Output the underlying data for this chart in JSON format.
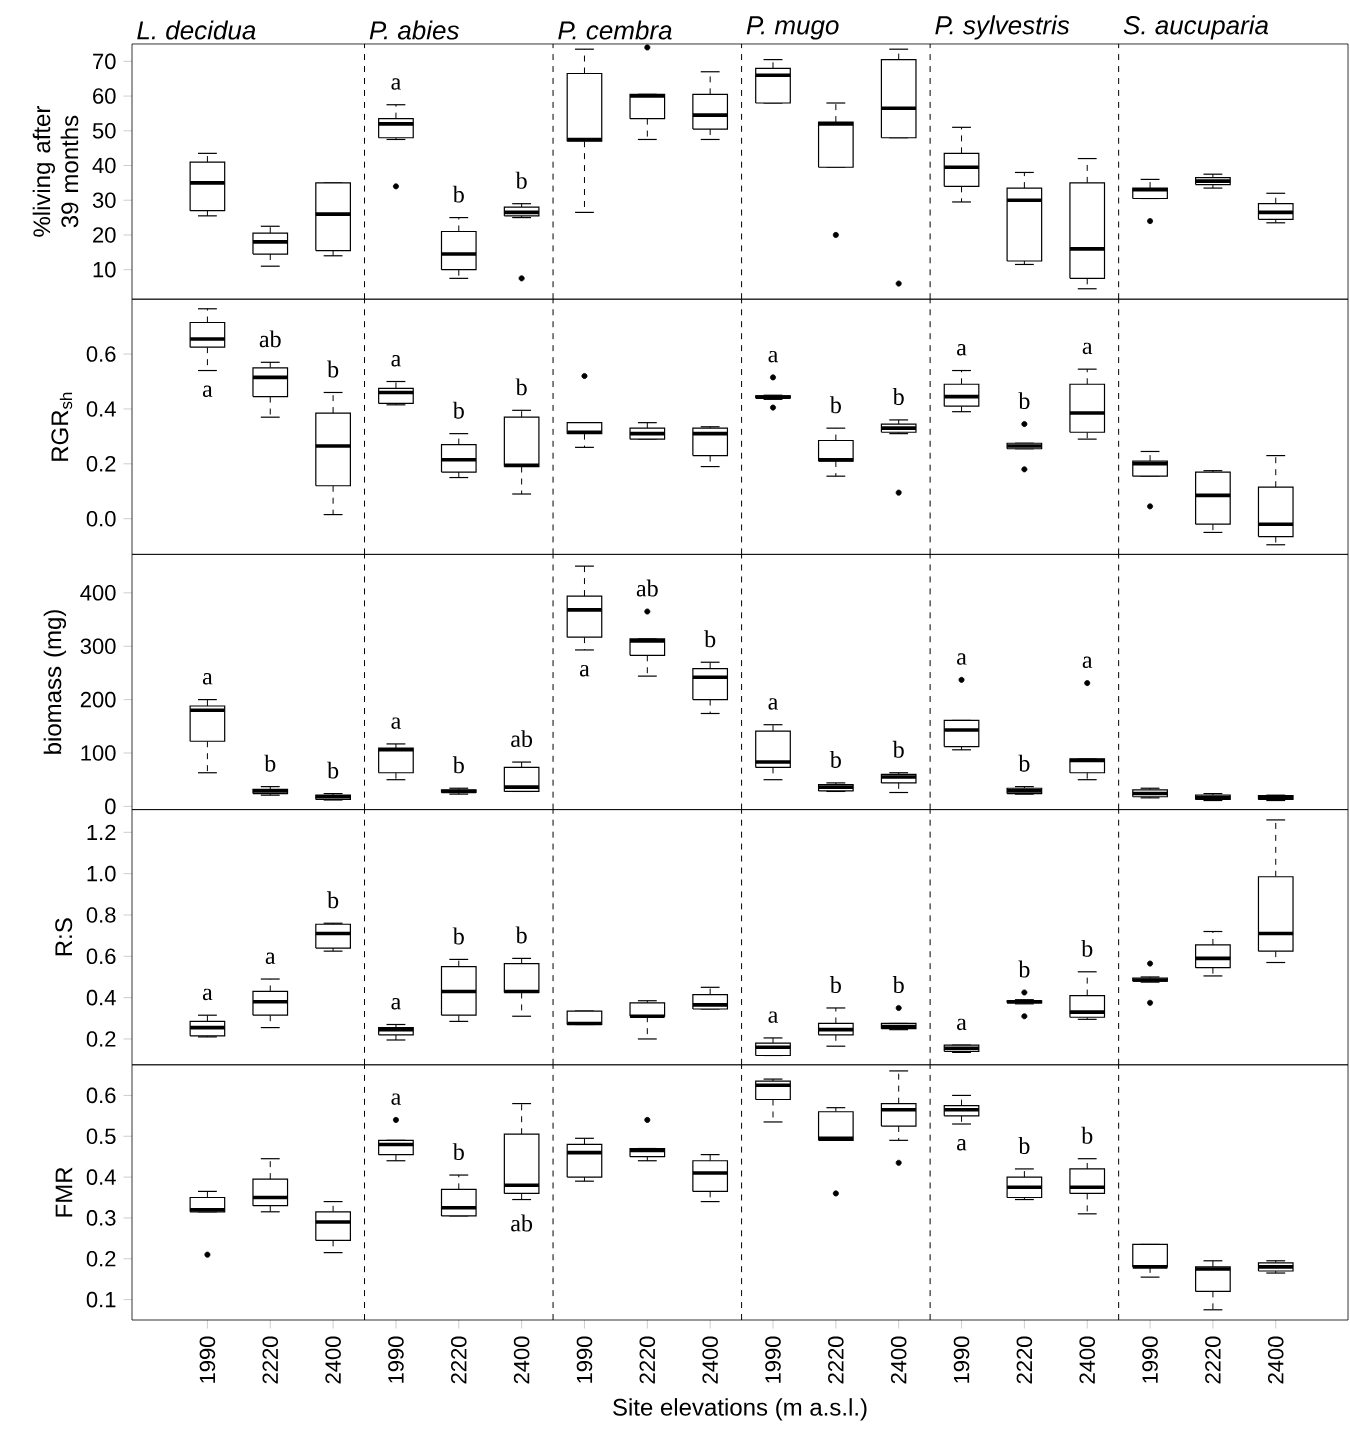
{
  "chart_data": [
    {
      "type": "box",
      "ylabel": "%living after 39 months",
      "tick_labels": "y",
      "annotations": [
        "L. decidua",
        "P. abies",
        "P. cembra",
        "P. mugo",
        "P. sylvestris",
        "S. aucuparia"
      ],
      "categories": [
        "1990",
        "2220",
        "2400",
        "1990",
        "2220",
        "2400",
        "1990",
        "2220",
        "2400",
        "1990",
        "2220",
        "2400",
        "1990",
        "2220",
        "2400",
        "1990",
        "2220",
        "2400"
      ],
      "ylim": [
        1.5,
        75
      ],
      "yticks": [
        10,
        20,
        30,
        40,
        50,
        60,
        70
      ],
      "boxes": [
        {
          "low": 25.5,
          "q1": 27,
          "median": 35,
          "q3": 41,
          "high": 43.5
        },
        {
          "low": 11,
          "q1": 14.5,
          "median": 18,
          "q3": 20.5,
          "high": 22.5
        },
        {
          "low": 14,
          "q1": 15.5,
          "median": 26,
          "q3": 35,
          "high": 35
        },
        {
          "low": 47.5,
          "q1": 48,
          "median": 52,
          "q3": 53.5,
          "high": 57.5,
          "outliers": [
            34
          ]
        },
        {
          "low": 7.5,
          "q1": 10,
          "median": 14.5,
          "q3": 21,
          "high": 25
        },
        {
          "low": 25,
          "q1": 25.5,
          "median": 26.5,
          "q3": 28,
          "high": 29,
          "outliers": [
            7.5
          ]
        },
        {
          "low": 26.5,
          "q1": 47,
          "median": 47.5,
          "q3": 66.5,
          "high": 73.5
        },
        {
          "low": 47.5,
          "q1": 53.5,
          "median": 60,
          "q3": 60.5,
          "high": 60.5,
          "outliers": [
            74
          ]
        },
        {
          "low": 47.5,
          "q1": 50.5,
          "median": 54.5,
          "q3": 60.5,
          "high": 67
        },
        {
          "low": 58,
          "q1": 58,
          "median": 66,
          "q3": 68,
          "high": 70.5
        },
        {
          "low": 39.5,
          "q1": 39.5,
          "median": 52,
          "q3": 52.5,
          "high": 58,
          "outliers": [
            20
          ]
        },
        {
          "low": 48,
          "q1": 48,
          "median": 56.5,
          "q3": 70.5,
          "high": 73.5,
          "outliers": [
            6
          ]
        },
        {
          "low": 29.5,
          "q1": 34,
          "median": 39.5,
          "q3": 43.5,
          "high": 51
        },
        {
          "low": 11.5,
          "q1": 12.5,
          "median": 30,
          "q3": 33.5,
          "high": 38
        },
        {
          "low": 4.5,
          "q1": 7.5,
          "median": 16,
          "q3": 35,
          "high": 42
        },
        {
          "low": 30.5,
          "q1": 30.5,
          "median": 33,
          "q3": 33.5,
          "high": 36,
          "outliers": [
            24
          ]
        },
        {
          "low": 33.5,
          "q1": 34.5,
          "median": 35.5,
          "q3": 36.5,
          "high": 37.5
        },
        {
          "low": 23.5,
          "q1": 24.5,
          "median": 26.5,
          "q3": 29,
          "high": 32
        }
      ],
      "value_labels": [
        null,
        null,
        null,
        "a",
        "b",
        "b",
        null,
        null,
        null,
        null,
        null,
        null,
        null,
        null,
        null,
        null,
        null,
        null
      ]
    },
    {
      "type": "box",
      "ylabel": "RGR$_{sh}$",
      "tick_labels": "y",
      "categories": [
        "1990",
        "2220",
        "2400",
        "1990",
        "2220",
        "2400",
        "1990",
        "2220",
        "2400",
        "1990",
        "2220",
        "2400",
        "1990",
        "2220",
        "2400",
        "1990",
        "2220",
        "2400"
      ],
      "ylim": [
        -0.13,
        0.8
      ],
      "yticks": [
        {
          "value": 0,
          "label": "0.0"
        },
        0.2,
        0.4,
        0.6
      ],
      "boxes": [
        {
          "low": 0.54,
          "q1": 0.625,
          "median": 0.655,
          "q3": 0.715,
          "high": 0.765
        },
        {
          "low": 0.37,
          "q1": 0.445,
          "median": 0.515,
          "q3": 0.55,
          "high": 0.57
        },
        {
          "low": 0.015,
          "q1": 0.12,
          "median": 0.265,
          "q3": 0.385,
          "high": 0.46
        },
        {
          "low": 0.415,
          "q1": 0.42,
          "median": 0.46,
          "q3": 0.475,
          "high": 0.5
        },
        {
          "low": 0.15,
          "q1": 0.17,
          "median": 0.215,
          "q3": 0.27,
          "high": 0.31
        },
        {
          "low": 0.09,
          "q1": 0.19,
          "median": 0.195,
          "q3": 0.37,
          "high": 0.395
        },
        {
          "low": 0.26,
          "q1": 0.31,
          "median": 0.315,
          "q3": 0.35,
          "high": 0.35,
          "outliers": [
            0.52
          ]
        },
        {
          "low": 0.29,
          "q1": 0.29,
          "median": 0.31,
          "q3": 0.33,
          "high": 0.35
        },
        {
          "low": 0.19,
          "q1": 0.23,
          "median": 0.31,
          "q3": 0.33,
          "high": 0.335
        },
        {
          "low": 0.435,
          "q1": 0.44,
          "median": 0.443,
          "q3": 0.448,
          "high": 0.45,
          "outliers": [
            0.515,
            0.405
          ]
        },
        {
          "low": 0.155,
          "q1": 0.21,
          "median": 0.215,
          "q3": 0.285,
          "high": 0.33
        },
        {
          "low": 0.31,
          "q1": 0.315,
          "median": 0.33,
          "q3": 0.345,
          "high": 0.36,
          "outliers": [
            0.095
          ]
        },
        {
          "low": 0.39,
          "q1": 0.41,
          "median": 0.445,
          "q3": 0.49,
          "high": 0.54
        },
        {
          "low": 0.255,
          "q1": 0.255,
          "median": 0.265,
          "q3": 0.275,
          "high": 0.275,
          "outliers": [
            0.345,
            0.18
          ]
        },
        {
          "low": 0.29,
          "q1": 0.315,
          "median": 0.385,
          "q3": 0.49,
          "high": 0.545
        },
        {
          "low": 0.155,
          "q1": 0.155,
          "median": 0.2,
          "q3": 0.21,
          "high": 0.245,
          "outliers": [
            0.045
          ]
        },
        {
          "low": -0.05,
          "q1": -0.02,
          "median": 0.085,
          "q3": 0.17,
          "high": 0.175
        },
        {
          "low": -0.095,
          "q1": -0.065,
          "median": -0.02,
          "q3": 0.115,
          "high": 0.23
        }
      ],
      "value_labels": [
        "a",
        "ab",
        "b",
        "a",
        "b",
        "b",
        null,
        null,
        null,
        "a",
        "b",
        "b",
        "a",
        "b",
        "a",
        null,
        null,
        null
      ]
    },
    {
      "type": "box",
      "ylabel": "biomass (mg)",
      "tick_labels": "y",
      "categories": [
        "1990",
        "2220",
        "2400",
        "1990",
        "2220",
        "2400",
        "1990",
        "2220",
        "2400",
        "1990",
        "2220",
        "2400",
        "1990",
        "2220",
        "2400",
        "1990",
        "2220",
        "2400"
      ],
      "ylim": [
        -6,
        472
      ],
      "yticks": [
        0,
        100,
        200,
        300,
        400
      ],
      "boxes": [
        {
          "low": 63,
          "q1": 122,
          "median": 180,
          "q3": 188,
          "high": 200
        },
        {
          "low": 21,
          "q1": 24,
          "median": 29,
          "q3": 32,
          "high": 37
        },
        {
          "low": 12,
          "q1": 13,
          "median": 18,
          "q3": 21,
          "high": 24
        },
        {
          "low": 50,
          "q1": 63,
          "median": 106,
          "q3": 109,
          "high": 117
        },
        {
          "low": 23,
          "q1": 26,
          "median": 28,
          "q3": 31,
          "high": 34
        },
        {
          "low": 28,
          "q1": 28,
          "median": 36,
          "q3": 73,
          "high": 83
        },
        {
          "low": 293,
          "q1": 317,
          "median": 368,
          "q3": 394,
          "high": 450
        },
        {
          "low": 244,
          "q1": 283,
          "median": 310,
          "q3": 314,
          "high": 314,
          "outliers": [
            365
          ]
        },
        {
          "low": 174,
          "q1": 200,
          "median": 242,
          "q3": 258,
          "high": 270
        },
        {
          "low": 50,
          "q1": 73,
          "median": 83,
          "q3": 141,
          "high": 153
        },
        {
          "low": 28,
          "q1": 29,
          "median": 36,
          "q3": 41,
          "high": 44
        },
        {
          "low": 26,
          "q1": 44,
          "median": 55,
          "q3": 60,
          "high": 63
        },
        {
          "low": 106,
          "q1": 112,
          "median": 143,
          "q3": 161,
          "high": 161,
          "outliers": [
            237
          ]
        },
        {
          "low": 23,
          "q1": 24,
          "median": 29,
          "q3": 34,
          "high": 37
        },
        {
          "low": 50,
          "q1": 63,
          "median": 86,
          "q3": 89,
          "high": 89,
          "outliers": [
            231
          ]
        },
        {
          "low": 16,
          "q1": 18,
          "median": 24,
          "q3": 31,
          "high": 34
        },
        {
          "low": 11,
          "q1": 13,
          "median": 16,
          "q3": 21,
          "high": 24
        },
        {
          "low": 11,
          "q1": 13,
          "median": 16,
          "q3": 20,
          "high": 21
        }
      ],
      "value_labels": [
        "a",
        "b",
        "b",
        "a",
        "b",
        "ab",
        "a",
        "ab",
        "b",
        "a",
        "b",
        "b",
        "a",
        "b",
        "a",
        null,
        null,
        null
      ]
    },
    {
      "type": "box",
      "ylabel": "R:S",
      "tick_labels": "y",
      "categories": [
        "1990",
        "2220",
        "2400",
        "1990",
        "2220",
        "2400",
        "1990",
        "2220",
        "2400",
        "1990",
        "2220",
        "2400",
        "1990",
        "2220",
        "2400",
        "1990",
        "2220",
        "2400"
      ],
      "ylim": [
        0.075,
        1.31
      ],
      "yticks": [
        0.2,
        0.4,
        0.6,
        0.8,
        {
          "value": 1,
          "label": "1.0"
        },
        1.2
      ],
      "boxes": [
        {
          "low": 0.21,
          "q1": 0.215,
          "median": 0.255,
          "q3": 0.285,
          "high": 0.315
        },
        {
          "low": 0.255,
          "q1": 0.315,
          "median": 0.38,
          "q3": 0.43,
          "high": 0.49
        },
        {
          "low": 0.625,
          "q1": 0.64,
          "median": 0.71,
          "q3": 0.755,
          "high": 0.76
        },
        {
          "low": 0.195,
          "q1": 0.22,
          "median": 0.245,
          "q3": 0.255,
          "high": 0.27
        },
        {
          "low": 0.285,
          "q1": 0.315,
          "median": 0.43,
          "q3": 0.55,
          "high": 0.585
        },
        {
          "low": 0.31,
          "q1": 0.425,
          "median": 0.43,
          "q3": 0.565,
          "high": 0.59
        },
        {
          "low": 0.27,
          "q1": 0.27,
          "median": 0.275,
          "q3": 0.335,
          "high": 0.335
        },
        {
          "low": 0.2,
          "q1": 0.31,
          "median": 0.31,
          "q3": 0.375,
          "high": 0.385
        },
        {
          "low": 0.345,
          "q1": 0.345,
          "median": 0.365,
          "q3": 0.415,
          "high": 0.45
        },
        {
          "low": 0.12,
          "q1": 0.12,
          "median": 0.16,
          "q3": 0.18,
          "high": 0.205
        },
        {
          "low": 0.165,
          "q1": 0.22,
          "median": 0.245,
          "q3": 0.275,
          "high": 0.35
        },
        {
          "low": 0.245,
          "q1": 0.25,
          "median": 0.26,
          "q3": 0.275,
          "high": 0.275,
          "outliers": [
            0.35
          ]
        },
        {
          "low": 0.135,
          "q1": 0.14,
          "median": 0.155,
          "q3": 0.17,
          "high": 0.17
        },
        {
          "low": 0.37,
          "q1": 0.375,
          "median": 0.38,
          "q3": 0.385,
          "high": 0.39,
          "outliers": [
            0.425,
            0.31
          ]
        },
        {
          "low": 0.295,
          "q1": 0.305,
          "median": 0.33,
          "q3": 0.41,
          "high": 0.525
        },
        {
          "low": 0.475,
          "q1": 0.48,
          "median": 0.485,
          "q3": 0.495,
          "high": 0.5,
          "outliers": [
            0.565,
            0.375
          ]
        },
        {
          "low": 0.505,
          "q1": 0.545,
          "median": 0.59,
          "q3": 0.655,
          "high": 0.72
        },
        {
          "low": 0.57,
          "q1": 0.625,
          "median": 0.71,
          "q3": 0.985,
          "high": 1.26
        }
      ],
      "value_labels": [
        "a",
        "a",
        "b",
        "a",
        "b",
        "b",
        null,
        null,
        null,
        "a",
        "b",
        "b",
        "a",
        "b",
        "b",
        null,
        null,
        null
      ]
    },
    {
      "type": "box",
      "ylabel": "FMR",
      "xlabel": "Site elevations (m a.s.l.)",
      "categories": [
        "1990",
        "2220",
        "2400",
        "1990",
        "2220",
        "2400",
        "1990",
        "2220",
        "2400",
        "1990",
        "2220",
        "2400",
        "1990",
        "2220",
        "2400",
        "1990",
        "2220",
        "2400"
      ],
      "ylim": [
        0.05,
        0.675
      ],
      "yticks": [
        0.1,
        0.2,
        0.3,
        0.4,
        0.5,
        0.6
      ],
      "boxes": [
        {
          "low": 0.315,
          "q1": 0.315,
          "median": 0.32,
          "q3": 0.35,
          "high": 0.365,
          "outliers": [
            0.21
          ]
        },
        {
          "low": 0.315,
          "q1": 0.33,
          "median": 0.35,
          "q3": 0.395,
          "high": 0.445
        },
        {
          "low": 0.215,
          "q1": 0.245,
          "median": 0.29,
          "q3": 0.315,
          "high": 0.34
        },
        {
          "low": 0.44,
          "q1": 0.455,
          "median": 0.48,
          "q3": 0.49,
          "high": 0.49,
          "outliers": [
            0.54
          ]
        },
        {
          "low": 0.305,
          "q1": 0.305,
          "median": 0.325,
          "q3": 0.37,
          "high": 0.405
        },
        {
          "low": 0.345,
          "q1": 0.36,
          "median": 0.38,
          "q3": 0.505,
          "high": 0.58
        },
        {
          "low": 0.39,
          "q1": 0.4,
          "median": 0.46,
          "q3": 0.48,
          "high": 0.495
        },
        {
          "low": 0.44,
          "q1": 0.45,
          "median": 0.465,
          "q3": 0.47,
          "high": 0.47,
          "outliers": [
            0.54
          ]
        },
        {
          "low": 0.34,
          "q1": 0.365,
          "median": 0.41,
          "q3": 0.44,
          "high": 0.455
        },
        {
          "low": 0.535,
          "q1": 0.59,
          "median": 0.625,
          "q3": 0.635,
          "high": 0.64
        },
        {
          "low": 0.49,
          "q1": 0.49,
          "median": 0.495,
          "q3": 0.56,
          "high": 0.57,
          "outliers": [
            0.36
          ]
        },
        {
          "low": 0.49,
          "q1": 0.525,
          "median": 0.565,
          "q3": 0.58,
          "high": 0.66,
          "outliers": [
            0.435
          ]
        },
        {
          "low": 0.53,
          "q1": 0.55,
          "median": 0.565,
          "q3": 0.575,
          "high": 0.6
        },
        {
          "low": 0.345,
          "q1": 0.35,
          "median": 0.375,
          "q3": 0.4,
          "high": 0.42
        },
        {
          "low": 0.31,
          "q1": 0.36,
          "median": 0.375,
          "q3": 0.42,
          "high": 0.445
        },
        {
          "low": 0.155,
          "q1": 0.18,
          "median": 0.18,
          "q3": 0.235,
          "high": 0.235
        },
        {
          "low": 0.075,
          "q1": 0.12,
          "median": 0.175,
          "q3": 0.18,
          "high": 0.195
        },
        {
          "low": 0.165,
          "q1": 0.17,
          "median": 0.18,
          "q3": 0.19,
          "high": 0.195
        }
      ],
      "value_labels": [
        null,
        null,
        null,
        "a",
        "b",
        "ab",
        null,
        null,
        null,
        null,
        null,
        null,
        "a",
        "b",
        "b",
        null,
        null,
        null
      ]
    }
  ]
}
